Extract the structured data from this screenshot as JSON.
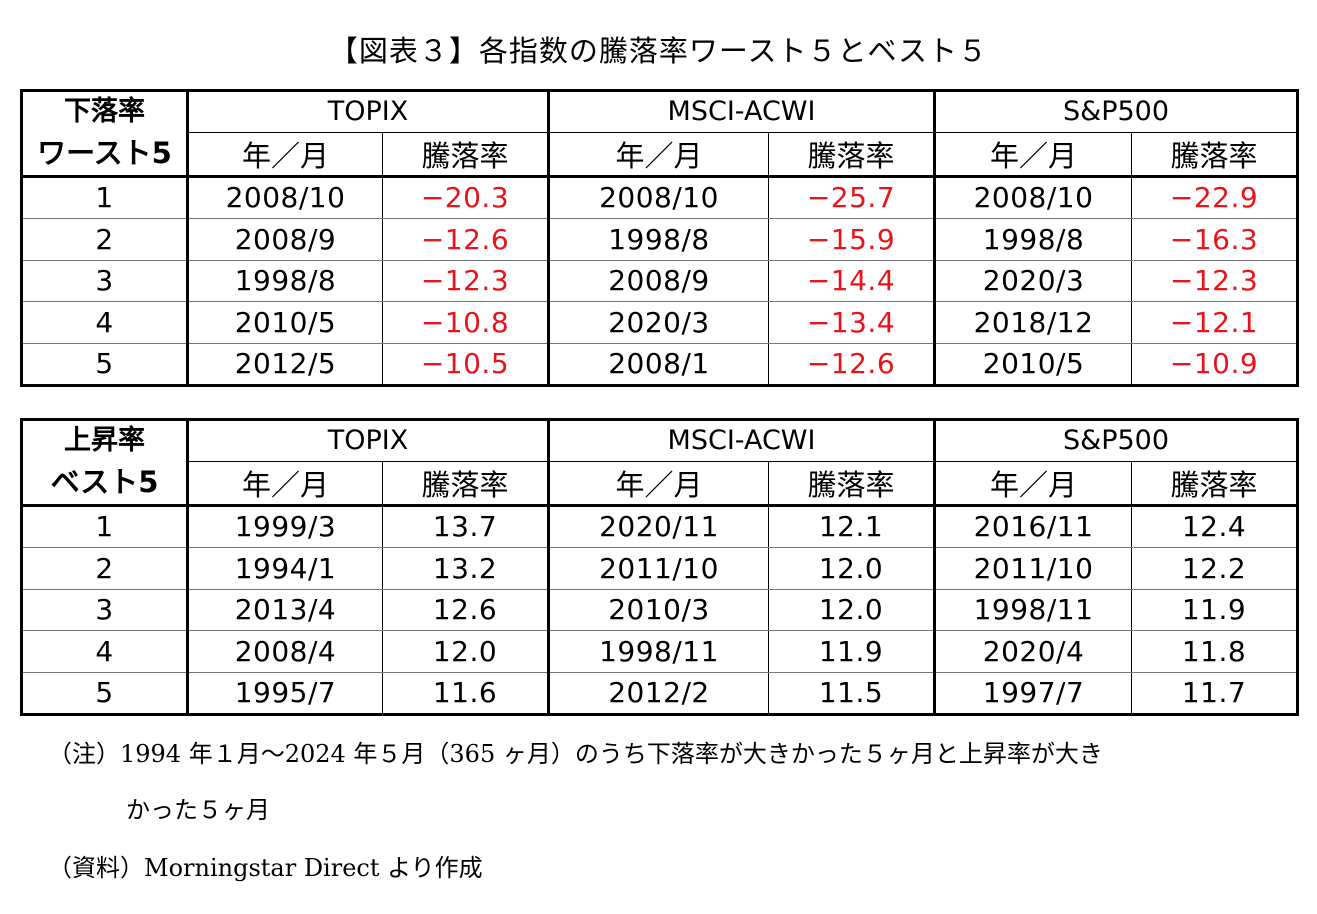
{
  "title": "【図表３】各指数の騰落率ワースト５とベスト５",
  "columns": {
    "indices": [
      "TOPIX",
      "MSCI-ACWI",
      "S&P500"
    ],
    "date_label": "年／月",
    "value_label": "騰落率"
  },
  "worst": {
    "label_line1": "下落率",
    "label_line2": "ワースト5",
    "rows": [
      {
        "rank": "1",
        "topix_date": "2008/10",
        "topix_val": "−20.3",
        "msci_date": "2008/10",
        "msci_val": "−25.7",
        "sp_date": "2008/10",
        "sp_val": "−22.9"
      },
      {
        "rank": "2",
        "topix_date": "2008/9",
        "topix_val": "−12.6",
        "msci_date": "1998/8",
        "msci_val": "−15.9",
        "sp_date": "1998/8",
        "sp_val": "−16.3"
      },
      {
        "rank": "3",
        "topix_date": "1998/8",
        "topix_val": "−12.3",
        "msci_date": "2008/9",
        "msci_val": "−14.4",
        "sp_date": "2020/3",
        "sp_val": "−12.3"
      },
      {
        "rank": "4",
        "topix_date": "2010/5",
        "topix_val": "−10.8",
        "msci_date": "2020/3",
        "msci_val": "−13.4",
        "sp_date": "2018/12",
        "sp_val": "−12.1"
      },
      {
        "rank": "5",
        "topix_date": "2012/5",
        "topix_val": "−10.5",
        "msci_date": "2008/1",
        "msci_val": "−12.6",
        "sp_date": "2010/5",
        "sp_val": "−10.9"
      }
    ]
  },
  "best": {
    "label_line1": "上昇率",
    "label_line2": "ベスト5",
    "rows": [
      {
        "rank": "1",
        "topix_date": "1999/3",
        "topix_val": "13.7",
        "msci_date": "2020/11",
        "msci_val": "12.1",
        "sp_date": "2016/11",
        "sp_val": "12.4"
      },
      {
        "rank": "2",
        "topix_date": "1994/1",
        "topix_val": "13.2",
        "msci_date": "2011/10",
        "msci_val": "12.0",
        "sp_date": "2011/10",
        "sp_val": "12.2"
      },
      {
        "rank": "3",
        "topix_date": "2013/4",
        "topix_val": "12.6",
        "msci_date": "2010/3",
        "msci_val": "12.0",
        "sp_date": "1998/11",
        "sp_val": "11.9"
      },
      {
        "rank": "4",
        "topix_date": "2008/4",
        "topix_val": "12.0",
        "msci_date": "1998/11",
        "msci_val": "11.9",
        "sp_date": "2020/4",
        "sp_val": "11.8"
      },
      {
        "rank": "5",
        "topix_date": "1995/7",
        "topix_val": "11.6",
        "msci_date": "2012/2",
        "msci_val": "11.5",
        "sp_date": "1997/7",
        "sp_val": "11.7"
      }
    ]
  },
  "notes": {
    "note_line1": "（注）1994 年１月～2024 年５月（365 ヶ月）のうち下落率が大きかった５ヶ月と上昇率が大き",
    "note_line2": "かった５ヶ月",
    "source": "（資料）Morningstar Direct より作成"
  },
  "colors": {
    "negative": "#e8141b"
  }
}
